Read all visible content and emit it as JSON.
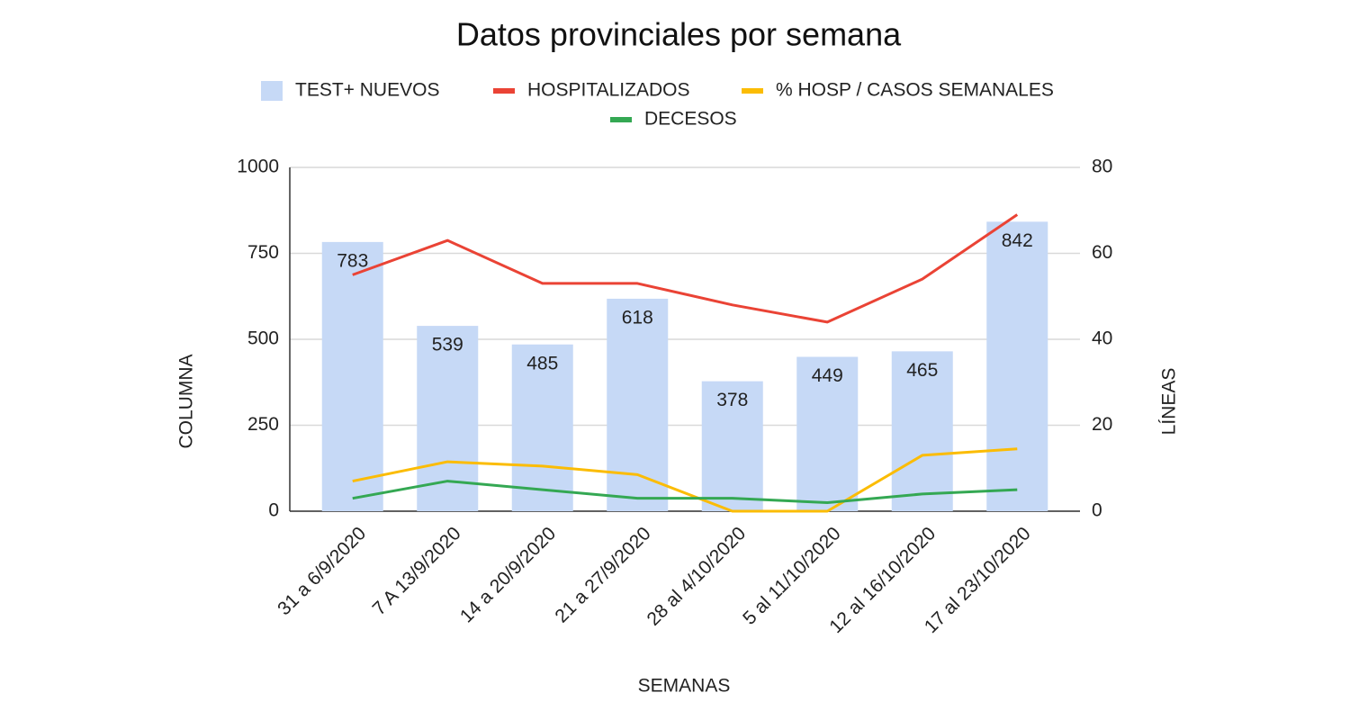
{
  "chart_data": {
    "type": "bar",
    "title": "Datos provinciales por semana",
    "x_label": "SEMANAS",
    "y_label": "COLUMNA",
    "y2_label": "LÍNEAS",
    "categories": [
      "31 a 6/9/2020",
      "7 A 13/9/2020",
      "14 a 20/9/2020",
      "21 a 27/9/2020",
      "28 al 4/10/2020",
      "5 al 11/10/2020",
      "12 al 16/10/2020",
      "17 al 23/10/2020"
    ],
    "series": [
      {
        "name": "TEST+ NUEVOS",
        "type": "bar",
        "color": "#c6d9f6",
        "values": [
          783,
          539,
          485,
          618,
          378,
          449,
          465,
          842
        ]
      },
      {
        "name": "HOSPITALIZADOS",
        "type": "line",
        "axis": "y2",
        "color": "#ea4335",
        "values": [
          55,
          63,
          53,
          53,
          48,
          44,
          54,
          69
        ]
      },
      {
        "name": "% HOSP / CASOS SEMANALES",
        "type": "line",
        "axis": "y2",
        "color": "#fbbc04",
        "values": [
          7,
          11.5,
          10.5,
          8.5,
          0,
          0,
          13,
          14.5
        ]
      },
      {
        "name": "DECESOS",
        "type": "line",
        "axis": "y2",
        "color": "#34a853",
        "values": [
          3,
          7,
          5,
          3,
          3,
          2,
          4,
          5
        ]
      }
    ],
    "ylim": [
      0,
      1000
    ],
    "yticks": [
      0,
      250,
      500,
      750,
      1000
    ],
    "y2lim": [
      0,
      80
    ],
    "y2ticks": [
      0,
      20,
      40,
      60,
      80
    ],
    "grid": true,
    "legend": "top"
  }
}
